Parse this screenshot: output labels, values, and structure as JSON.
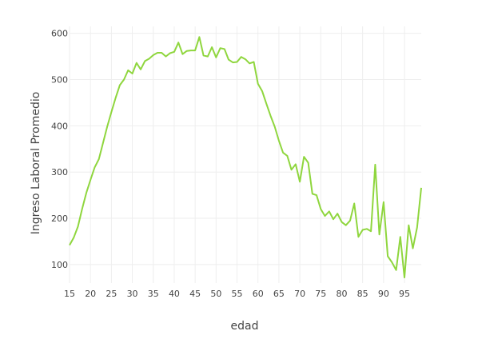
{
  "chart_data": {
    "type": "line",
    "title": "",
    "xlabel": "edad",
    "ylabel": "Ingreso Laboral Promedio",
    "xlim": [
      15,
      99
    ],
    "ylim": [
      60,
      615
    ],
    "x_ticks": [
      15,
      20,
      25,
      30,
      35,
      40,
      45,
      50,
      55,
      60,
      65,
      70,
      75,
      80,
      85,
      90,
      95
    ],
    "y_ticks": [
      100,
      200,
      300,
      400,
      500,
      600
    ],
    "grid": true,
    "legend": "none",
    "line_color": "#8fd63e",
    "series": [
      {
        "x": [
          15,
          16,
          17,
          18,
          19,
          20,
          21,
          22,
          23,
          24,
          25,
          26,
          27,
          28,
          29,
          30,
          31,
          32,
          33,
          34,
          35,
          36,
          37,
          38,
          39,
          40,
          41,
          42,
          43,
          44,
          45,
          46,
          47,
          48,
          49,
          50,
          51,
          52,
          53,
          54,
          55,
          56,
          57,
          58,
          59,
          60,
          61,
          62,
          63,
          64,
          65,
          66,
          67,
          68,
          69,
          70,
          71,
          72,
          73,
          74,
          75,
          76,
          77,
          78,
          79,
          80,
          81,
          82,
          83,
          84,
          85,
          86,
          87,
          88,
          89,
          90,
          91,
          92,
          93,
          94,
          95,
          96,
          97,
          98,
          99
        ],
        "y": [
          142,
          158,
          182,
          220,
          255,
          283,
          310,
          328,
          363,
          398,
          430,
          460,
          488,
          500,
          520,
          513,
          536,
          522,
          540,
          545,
          553,
          558,
          558,
          550,
          557,
          560,
          580,
          555,
          562,
          563,
          563,
          592,
          552,
          550,
          570,
          548,
          568,
          566,
          543,
          537,
          538,
          549,
          544,
          535,
          538,
          491,
          475,
          448,
          422,
          398,
          368,
          342,
          335,
          305,
          317,
          279,
          333,
          320,
          253,
          250,
          220,
          205,
          215,
          198,
          210,
          192,
          185,
          195,
          232,
          160,
          175,
          177,
          172,
          316,
          165,
          235,
          118,
          105,
          88,
          160,
          72,
          185,
          135,
          180,
          266
        ]
      }
    ]
  }
}
